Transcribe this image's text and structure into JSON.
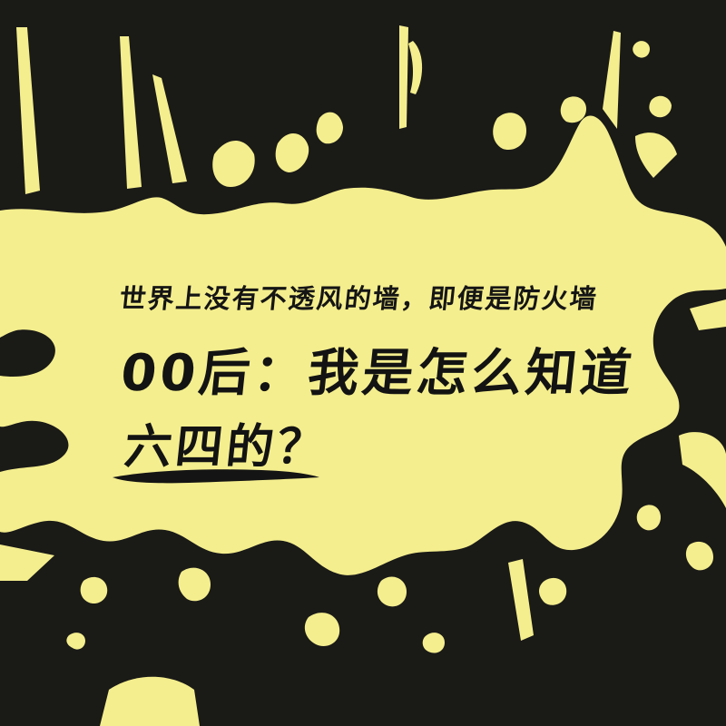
{
  "poster": {
    "line1": "世界上没有不透风的墙，即便是防火墙",
    "line2": "00后：我是怎么知道",
    "line3": "六四的？"
  },
  "colors": {
    "background": "#1a1a17",
    "splash": "#f4ee8e",
    "text": "#141414"
  }
}
